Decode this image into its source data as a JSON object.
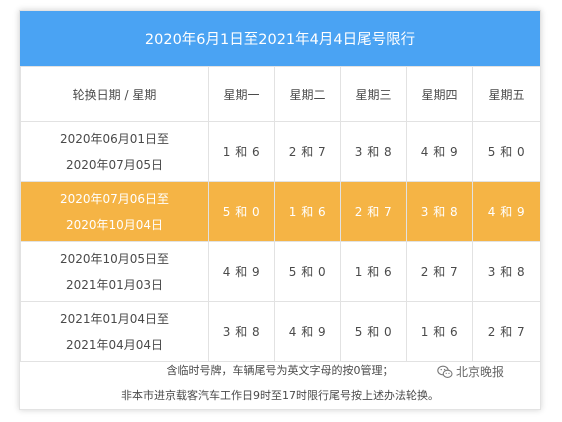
{
  "title": "2020年6月1日至2021年4月4日尾号限行",
  "header": {
    "first_col": "轮换日期 / 星期",
    "days": [
      "星期一",
      "星期二",
      "星期三",
      "星期四",
      "星期五"
    ]
  },
  "rows": [
    {
      "start": "2020年06月01日至",
      "end": "2020年07月05日",
      "pairs": [
        "1 和 6",
        "2 和 7",
        "3 和 8",
        "4 和 9",
        "5 和 0"
      ],
      "highlight": false
    },
    {
      "start": "2020年07月06日至",
      "end": "2020年10月04日",
      "pairs": [
        "5 和 0",
        "1 和 6",
        "2 和 7",
        "3 和 8",
        "4 和 9"
      ],
      "highlight": true
    },
    {
      "start": "2020年10月05日至",
      "end": "2021年01月03日",
      "pairs": [
        "4 和 9",
        "5 和 0",
        "1 和 6",
        "2 和 7",
        "3 和 8"
      ],
      "highlight": false
    },
    {
      "start": "2021年01月04日至",
      "end": "2021年04月04日",
      "pairs": [
        "3 和 8",
        "4 和 9",
        "5 和 0",
        "1 和 6",
        "2 和 7"
      ],
      "highlight": false
    }
  ],
  "notes": {
    "line1": "含临时号牌，车辆尾号为英文字母的按0管理；",
    "line2": "非本市进京载客汽车工作日9时至17时限行尾号按上述办法轮换。"
  },
  "watermark": {
    "text": "北京晚报",
    "icon": "wechat-icon"
  },
  "colors": {
    "title_bg": "#4aa3f3",
    "highlight_bg": "#f5b445",
    "text": "#4a4a4a"
  }
}
